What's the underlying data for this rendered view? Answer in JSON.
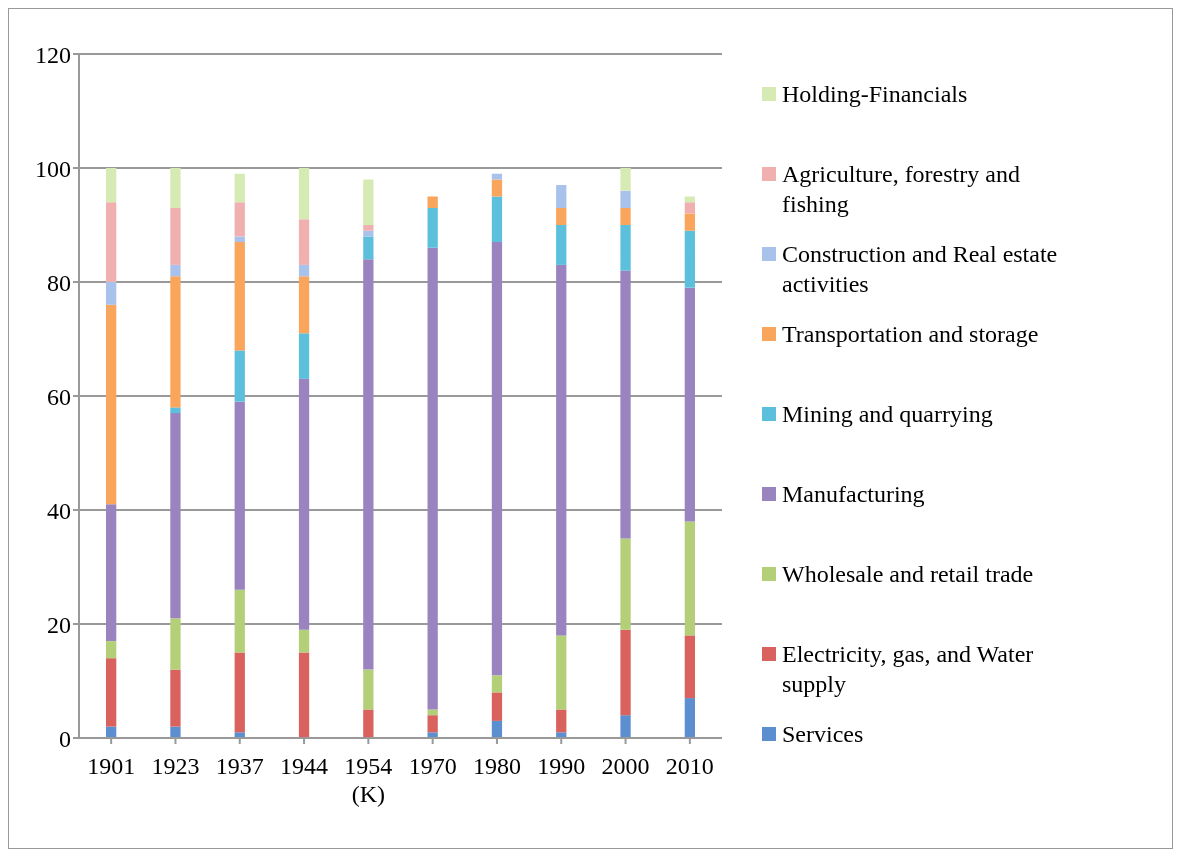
{
  "chart_data": {
    "type": "bar",
    "stacked": true,
    "categories": [
      "1901",
      "1923",
      "1937",
      "1944",
      "1954\n(K)",
      "1970",
      "1980",
      "1990",
      "2000",
      "2010"
    ],
    "ylim": [
      0,
      120
    ],
    "yticks": [
      0,
      20,
      40,
      60,
      80,
      100,
      120
    ],
    "grid": "y",
    "legend": "right",
    "series": [
      {
        "name": "Services",
        "color": "#5b8fd0",
        "values": [
          2,
          2,
          1,
          0,
          0,
          1,
          3,
          1,
          4,
          7
        ]
      },
      {
        "name": "Electricity, gas, and Water supply",
        "color": "#d9625e",
        "values": [
          12,
          10,
          14,
          15,
          5,
          3,
          5,
          4,
          15,
          11
        ]
      },
      {
        "name": "Wholesale and retail trade",
        "color": "#b3cf78",
        "values": [
          3,
          9,
          11,
          4,
          7,
          1,
          3,
          13,
          16,
          20
        ]
      },
      {
        "name": "Manufacturing",
        "color": "#9a84bf",
        "values": [
          24,
          36,
          33,
          44,
          72,
          81,
          76,
          65,
          47,
          41
        ]
      },
      {
        "name": "Mining and quarrying",
        "color": "#5cc0dc",
        "values": [
          0,
          1,
          9,
          8,
          4,
          7,
          8,
          7,
          8,
          10
        ]
      },
      {
        "name": "Transportation and storage",
        "color": "#f9a55c",
        "values": [
          35,
          23,
          19,
          10,
          0,
          2,
          3,
          3,
          3,
          3
        ]
      },
      {
        "name": "Construction and Real estate activities",
        "color": "#a8c2ec",
        "values": [
          4,
          2,
          1,
          2,
          1,
          0,
          1,
          4,
          3,
          0
        ]
      },
      {
        "name": "Agriculture, forestry and fishing",
        "color": "#f0b0b0",
        "values": [
          14,
          10,
          6,
          8,
          1,
          0,
          0,
          0,
          0,
          2
        ]
      },
      {
        "name": "Holding-Financials",
        "color": "#d6ebb4",
        "values": [
          6,
          7,
          5,
          9,
          8,
          0,
          0,
          0,
          4,
          1
        ]
      }
    ]
  }
}
